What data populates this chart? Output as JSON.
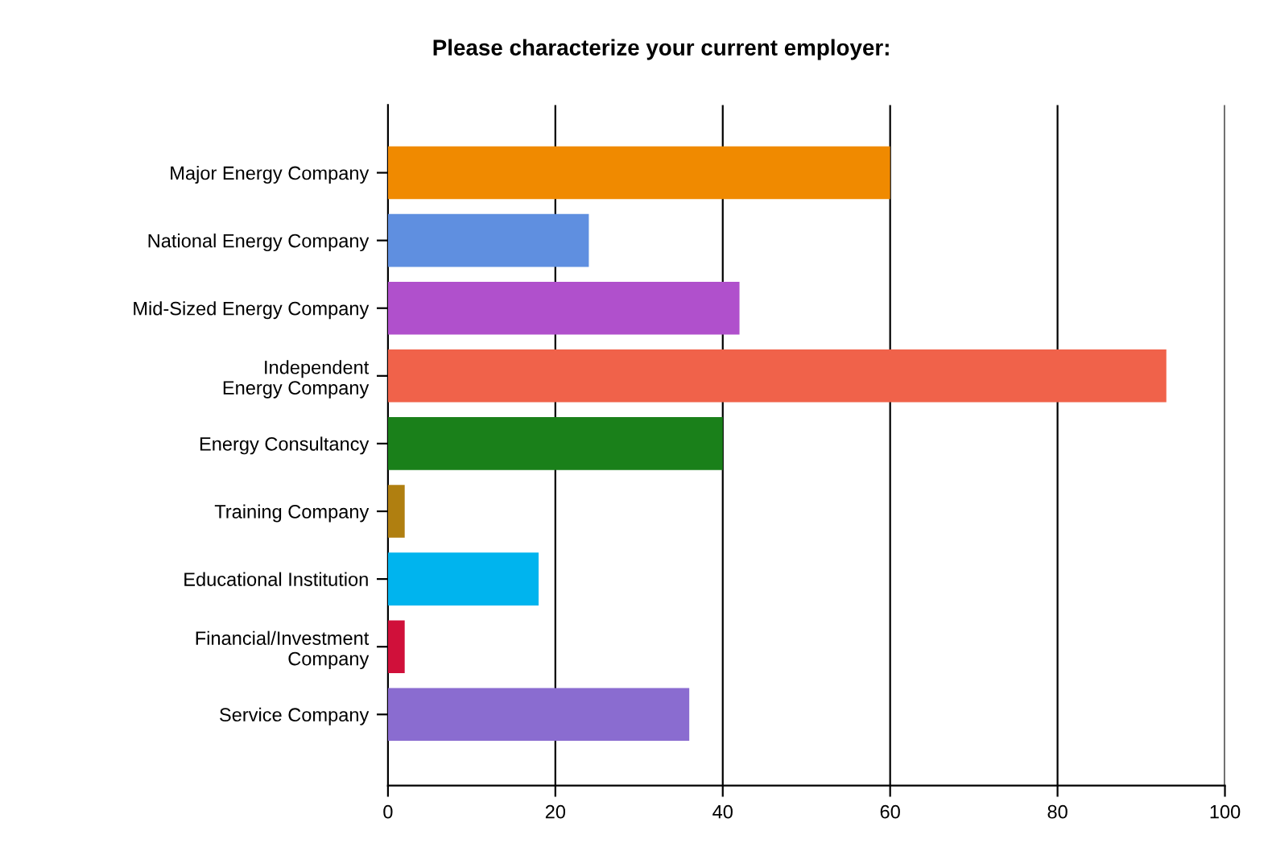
{
  "chart_data": {
    "type": "bar",
    "orientation": "horizontal",
    "title": "Please characterize your current employer:",
    "categories": [
      "Major Energy Company",
      "National Energy Company",
      "Mid-Sized Energy Company",
      "Independent\nEnergy Company",
      "Energy Consultancy",
      "Training Company",
      "Educational Institution",
      "Financial/Investment\nCompany",
      "Service Company"
    ],
    "values": [
      60,
      24,
      42,
      93,
      40,
      2,
      18,
      2,
      36
    ],
    "colors": [
      "#f08a00",
      "#5f8fe0",
      "#b050cc",
      "#f0624a",
      "#1a801a",
      "#b07f10",
      "#00b4ee",
      "#d0103a",
      "#8a6cd0"
    ],
    "xlim": [
      0,
      100
    ],
    "xticks": [
      0,
      20,
      40,
      60,
      80,
      100
    ],
    "grid": "x"
  }
}
